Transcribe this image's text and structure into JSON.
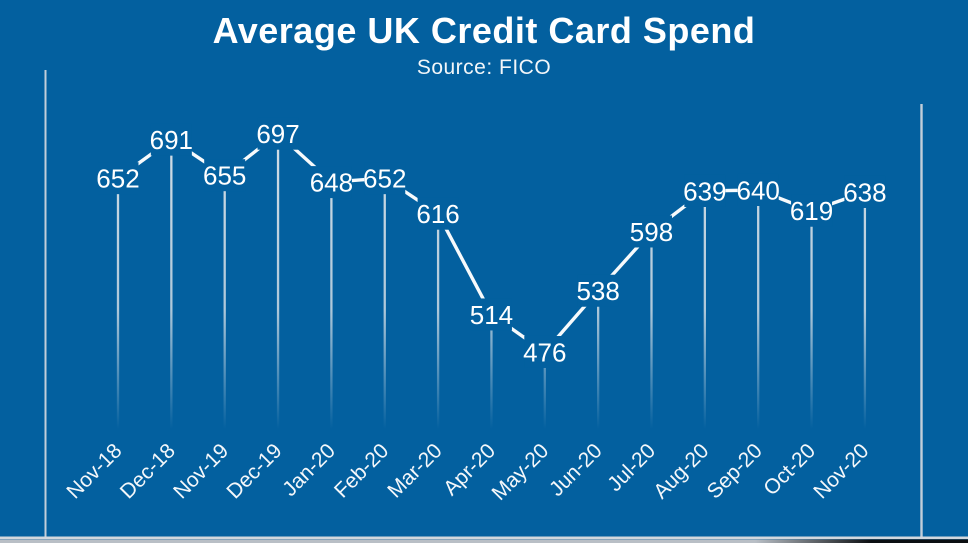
{
  "chart_data": {
    "type": "line",
    "title": "Average UK Credit Card Spend",
    "subtitle": "Source: FICO",
    "categories": [
      "Nov-18",
      "Dec-18",
      "Nov-19",
      "Dec-19",
      "Jan-20",
      "Feb-20",
      "Mar-20",
      "Apr-20",
      "May-20",
      "Jun-20",
      "Jul-20",
      "Aug-20",
      "Sep-20",
      "Oct-20",
      "Nov-20"
    ],
    "values": [
      652,
      691,
      655,
      697,
      648,
      652,
      616,
      514,
      476,
      538,
      598,
      639,
      640,
      619,
      638
    ],
    "data_labels": [
      "652",
      "691",
      "655",
      "697",
      "648",
      "652",
      "616",
      "514",
      "476",
      "538",
      "598",
      "639",
      "640",
      "619",
      "638"
    ],
    "data_labels_visible": true,
    "drop_lines_to_axis": true,
    "grid": false,
    "legend": "none",
    "y_axis": {
      "tick_labels": [],
      "visible_frame_lines": "left-right-bottom"
    },
    "x_axis": {
      "tick_label_rotation_deg": -45
    },
    "colors": {
      "background": "#03609F",
      "line": "#FFFFFF",
      "stem": "#DFE5EA",
      "frame": "#D2D8DE",
      "text": "#FFFFFF",
      "bottom_strip_light": "#B9BFC6",
      "bottom_strip_dark": "#0B0E11"
    }
  }
}
